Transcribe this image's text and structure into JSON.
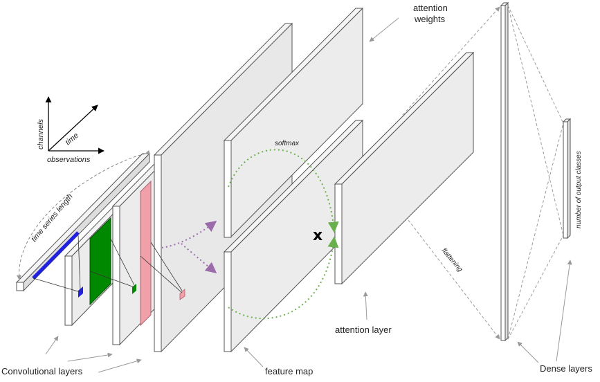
{
  "axes": {
    "channels": "channels",
    "time": "time",
    "observations": "observations"
  },
  "labels": {
    "time_series_length": "time series length",
    "convolutional_layers": "Convolutional layers",
    "feature_map": "feature map",
    "softmax": "softmax",
    "multiply": "x",
    "attention_weights_line1": "attention",
    "attention_weights_line2": "weights",
    "attention_layer": "attention layer",
    "flattening": "flattening",
    "number_of_output_classes": "number of output classes",
    "dense_layers": "Dense layers"
  },
  "colors": {
    "input_highlight": "#2020e0",
    "conv1_highlight": "#008800",
    "conv2_highlight": "#f0a0a8",
    "softmax_arc": "#6ab04c",
    "attention_arrows": "#9b6bab",
    "panel_fill": "#ececec",
    "edge": "#555555"
  }
}
